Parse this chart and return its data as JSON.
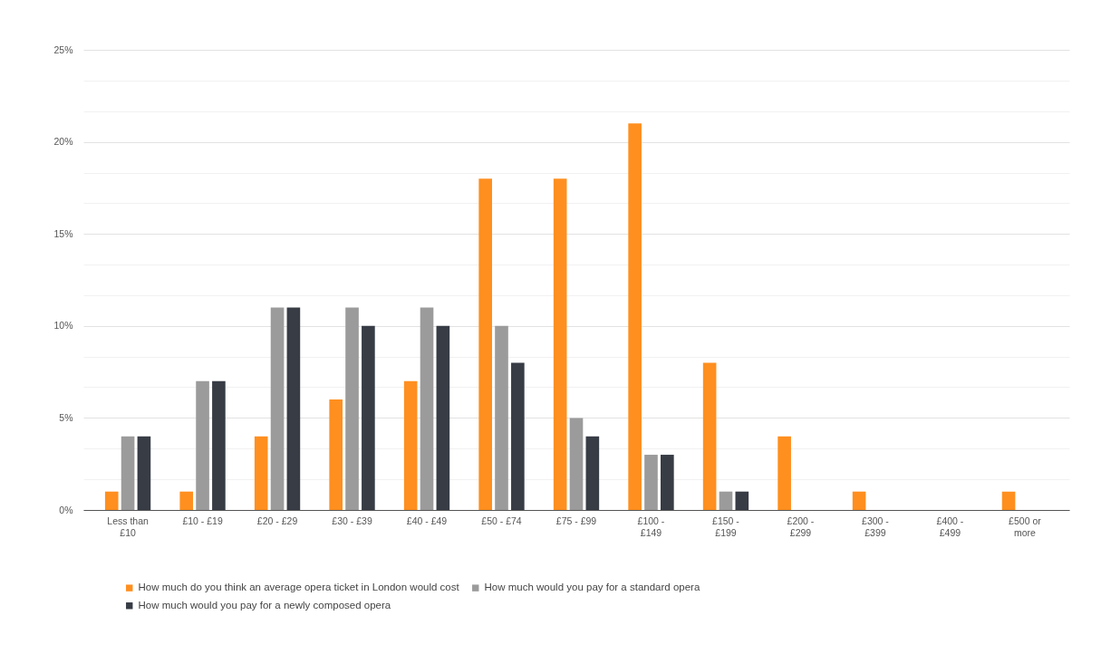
{
  "chart_data": {
    "type": "bar",
    "categories": [
      "Less than £10",
      "£10 - £19",
      "£20 - £29",
      "£30 - £39",
      "£40 - £49",
      "£50 - £74",
      "£75 - £99",
      "£100 - £149",
      "£150 - £199",
      "£200 - £299",
      "£300 - £399",
      "£400 - £499",
      "£500 or more"
    ],
    "series": [
      {
        "name": "How much do you think an average opera ticket in London would cost",
        "color": "#ff8f1f",
        "values": [
          1,
          1,
          4,
          6,
          7,
          18,
          18,
          21,
          8,
          4,
          1,
          null,
          1
        ]
      },
      {
        "name": "How much would you pay for a standard opera",
        "color": "#9b9b9b",
        "values": [
          4,
          7,
          11,
          11,
          11,
          10,
          5,
          3,
          1,
          null,
          null,
          null,
          null
        ]
      },
      {
        "name": "How much would you pay for a newly composed opera",
        "color": "#373c45",
        "values": [
          4,
          7,
          11,
          10,
          10,
          8,
          4,
          3,
          1,
          null,
          null,
          null,
          null
        ]
      }
    ],
    "ylim": [
      0,
      25
    ],
    "yticks": [
      {
        "value": 0,
        "label": "0%"
      },
      {
        "value": 1.67,
        "label": null
      },
      {
        "value": 3.33,
        "label": null
      },
      {
        "value": 5,
        "label": "5%"
      },
      {
        "value": 6.67,
        "label": null
      },
      {
        "value": 8.33,
        "label": null
      },
      {
        "value": 10,
        "label": "10%"
      },
      {
        "value": 11.67,
        "label": null
      },
      {
        "value": 13.33,
        "label": null
      },
      {
        "value": 15,
        "label": "15%"
      },
      {
        "value": 16.67,
        "label": null
      },
      {
        "value": 18.33,
        "label": null
      },
      {
        "value": 20,
        "label": "20%"
      },
      {
        "value": 21.67,
        "label": null
      },
      {
        "value": 23.33,
        "label": null
      },
      {
        "value": 25,
        "label": "25%"
      }
    ],
    "grid": "y",
    "legend": "bottom"
  }
}
